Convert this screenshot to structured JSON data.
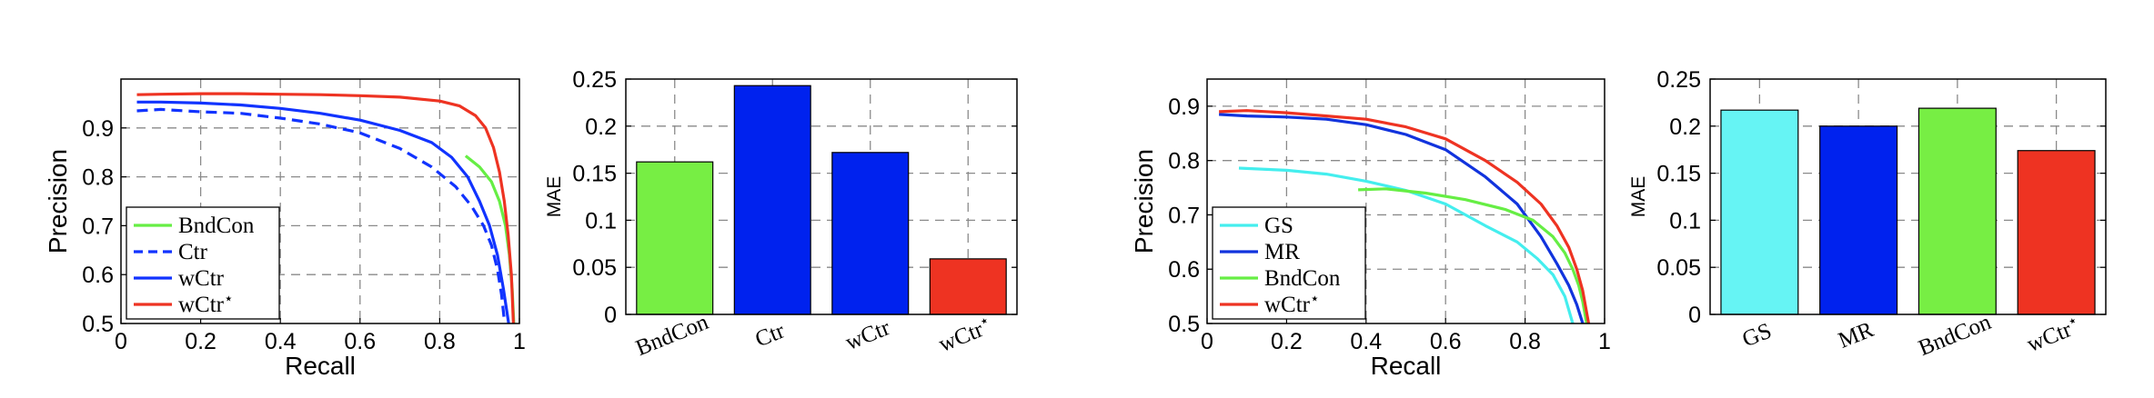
{
  "chart_data": [
    {
      "type": "line",
      "xlabel": "Recall",
      "ylabel": "Precision",
      "xlim": [
        0,
        1
      ],
      "ylim": [
        0.5,
        1.0
      ],
      "xticks": [
        "0",
        "0.2",
        "0.4",
        "0.6",
        "0.8",
        "1"
      ],
      "yticks": [
        "0.5",
        "0.6",
        "0.7",
        "0.8",
        "0.9"
      ],
      "grid": true,
      "legend": "bottom-left",
      "series": [
        {
          "name": "BndCon",
          "color": "#66ee44",
          "style": "solid",
          "x": [
            0.865,
            0.9,
            0.93,
            0.95,
            0.965,
            0.975,
            0.982,
            0.986
          ],
          "y": [
            0.843,
            0.82,
            0.79,
            0.75,
            0.7,
            0.64,
            0.57,
            0.5
          ]
        },
        {
          "name": "Ctr",
          "color": "#1133ff",
          "style": "dashed",
          "x": [
            0.04,
            0.1,
            0.2,
            0.3,
            0.4,
            0.5,
            0.6,
            0.7,
            0.78,
            0.84,
            0.88,
            0.91,
            0.93,
            0.945,
            0.955,
            0.963
          ],
          "y": [
            0.935,
            0.938,
            0.933,
            0.93,
            0.92,
            0.908,
            0.89,
            0.858,
            0.82,
            0.78,
            0.74,
            0.7,
            0.66,
            0.61,
            0.56,
            0.5
          ]
        },
        {
          "name": "wCtr",
          "color": "#1133ff",
          "style": "solid",
          "x": [
            0.04,
            0.1,
            0.2,
            0.3,
            0.4,
            0.5,
            0.6,
            0.7,
            0.78,
            0.83,
            0.87,
            0.9,
            0.925,
            0.945,
            0.96,
            0.973
          ],
          "y": [
            0.953,
            0.953,
            0.951,
            0.947,
            0.94,
            0.93,
            0.916,
            0.895,
            0.87,
            0.84,
            0.8,
            0.75,
            0.7,
            0.64,
            0.57,
            0.5
          ]
        },
        {
          "name": "wCtr*",
          "color": "#ee3322",
          "style": "solid",
          "x": [
            0.04,
            0.1,
            0.2,
            0.3,
            0.4,
            0.5,
            0.6,
            0.7,
            0.8,
            0.85,
            0.89,
            0.915,
            0.935,
            0.95,
            0.962,
            0.972,
            0.98,
            0.985
          ],
          "y": [
            0.968,
            0.969,
            0.97,
            0.97,
            0.969,
            0.968,
            0.966,
            0.963,
            0.955,
            0.945,
            0.925,
            0.9,
            0.86,
            0.81,
            0.75,
            0.68,
            0.6,
            0.5
          ]
        }
      ]
    },
    {
      "type": "bar",
      "ylabel": "MAE",
      "categories": [
        "BndCon",
        "Ctr",
        "wCtr",
        "wCtr*"
      ],
      "values": [
        0.162,
        0.243,
        0.172,
        0.059
      ],
      "colors": [
        "#77ee44",
        "#0022ee",
        "#0022ee",
        "#ee3322"
      ],
      "ylim": [
        0,
        0.25
      ],
      "yticks": [
        "0",
        "0.05",
        "0.1",
        "0.15",
        "0.2",
        "0.25"
      ],
      "grid": true
    },
    {
      "type": "line",
      "xlabel": "Recall",
      "ylabel": "Precision",
      "xlim": [
        0,
        1
      ],
      "ylim": [
        0.5,
        0.95
      ],
      "xticks": [
        "0",
        "0.2",
        "0.4",
        "0.6",
        "0.8",
        "1"
      ],
      "yticks": [
        "0.5",
        "0.6",
        "0.7",
        "0.8",
        "0.9"
      ],
      "grid": true,
      "legend": "bottom-left",
      "series": [
        {
          "name": "GS",
          "color": "#44eeee",
          "style": "solid",
          "x": [
            0.08,
            0.2,
            0.3,
            0.4,
            0.5,
            0.6,
            0.7,
            0.78,
            0.83,
            0.87,
            0.9,
            0.92
          ],
          "y": [
            0.786,
            0.782,
            0.775,
            0.762,
            0.745,
            0.72,
            0.68,
            0.65,
            0.62,
            0.59,
            0.55,
            0.5
          ]
        },
        {
          "name": "MR",
          "color": "#1133dd",
          "style": "solid",
          "x": [
            0.03,
            0.1,
            0.2,
            0.3,
            0.4,
            0.5,
            0.6,
            0.7,
            0.78,
            0.84,
            0.88,
            0.91,
            0.93,
            0.945
          ],
          "y": [
            0.885,
            0.882,
            0.88,
            0.876,
            0.866,
            0.848,
            0.82,
            0.77,
            0.72,
            0.66,
            0.61,
            0.57,
            0.535,
            0.5
          ]
        },
        {
          "name": "BndCon",
          "color": "#66ee44",
          "style": "solid",
          "x": [
            0.38,
            0.45,
            0.55,
            0.65,
            0.75,
            0.82,
            0.87,
            0.9,
            0.92,
            0.935,
            0.945,
            0.955
          ],
          "y": [
            0.746,
            0.748,
            0.74,
            0.728,
            0.71,
            0.69,
            0.66,
            0.63,
            0.6,
            0.57,
            0.54,
            0.5
          ]
        },
        {
          "name": "wCtr*",
          "color": "#ee3322",
          "style": "solid",
          "x": [
            0.03,
            0.1,
            0.2,
            0.3,
            0.4,
            0.5,
            0.6,
            0.7,
            0.78,
            0.84,
            0.88,
            0.91,
            0.93,
            0.945,
            0.955,
            0.96
          ],
          "y": [
            0.89,
            0.892,
            0.888,
            0.882,
            0.876,
            0.862,
            0.84,
            0.8,
            0.76,
            0.72,
            0.68,
            0.64,
            0.6,
            0.56,
            0.52,
            0.5
          ]
        }
      ]
    },
    {
      "type": "bar",
      "ylabel": "MAE",
      "categories": [
        "GS",
        "MR",
        "BndCon",
        "wCtr*"
      ],
      "values": [
        0.217,
        0.2,
        0.219,
        0.174
      ],
      "colors": [
        "#66f4f4",
        "#0022ee",
        "#77ee44",
        "#ee3322"
      ],
      "ylim": [
        0,
        0.25
      ],
      "yticks": [
        "0",
        "0.05",
        "0.1",
        "0.15",
        "0.2",
        "0.25"
      ],
      "grid": true
    }
  ]
}
